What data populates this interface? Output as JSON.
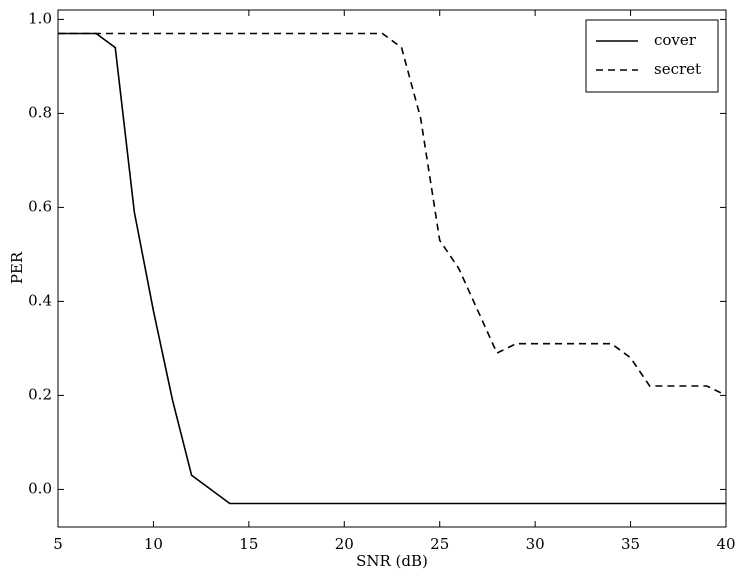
{
  "chart_data": {
    "type": "line",
    "xlabel": "SNR (dB)",
    "ylabel": "PER",
    "x": [
      5,
      6,
      7,
      8,
      9,
      10,
      11,
      12,
      13,
      14,
      15,
      16,
      17,
      18,
      19,
      20,
      21,
      22,
      23,
      24,
      25,
      26,
      27,
      28,
      29,
      30,
      31,
      32,
      33,
      34,
      35,
      36,
      37,
      38,
      39,
      40
    ],
    "series": [
      {
        "name": "cover",
        "color": "#000000",
        "dash": "solid",
        "values": [
          0.97,
          0.97,
          0.97,
          0.94,
          0.59,
          0.38,
          0.19,
          0.03,
          0.0,
          -0.03,
          -0.03,
          -0.03,
          -0.03,
          -0.03,
          -0.03,
          -0.03,
          -0.03,
          -0.03,
          -0.03,
          -0.03,
          -0.03,
          -0.03,
          -0.03,
          -0.03,
          -0.03,
          -0.03,
          -0.03,
          -0.03,
          -0.03,
          -0.03,
          -0.03,
          -0.03,
          -0.03,
          -0.03,
          -0.03,
          -0.03
        ]
      },
      {
        "name": "secret",
        "color": "#000000",
        "dash": "dashed",
        "values": [
          0.97,
          0.97,
          0.97,
          0.97,
          0.97,
          0.97,
          0.97,
          0.97,
          0.97,
          0.97,
          0.97,
          0.97,
          0.97,
          0.97,
          0.97,
          0.97,
          0.97,
          0.97,
          0.94,
          0.79,
          0.53,
          0.47,
          0.38,
          0.29,
          0.31,
          0.31,
          0.31,
          0.31,
          0.31,
          0.31,
          0.28,
          0.22,
          0.22,
          0.22,
          0.22,
          0.2
        ]
      }
    ],
    "xlim": [
      5,
      40
    ],
    "xticks": [
      5,
      10,
      15,
      20,
      25,
      30,
      35,
      40
    ],
    "ylim": [
      -0.08,
      1.02
    ],
    "yticks": [
      {
        "value": 0,
        "label": "0.0"
      },
      0.2,
      0.4,
      0.6,
      0.8,
      {
        "value": 1,
        "label": "1.0"
      }
    ],
    "grid": false,
    "legend": "upper right"
  }
}
